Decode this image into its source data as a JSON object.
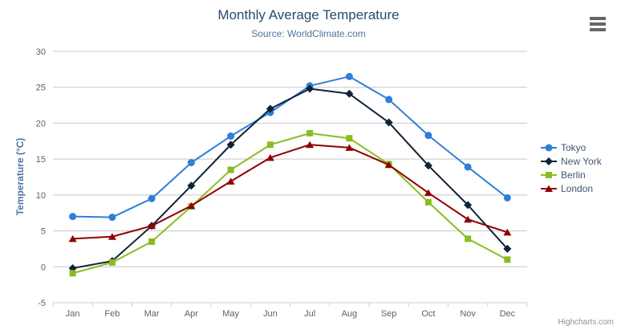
{
  "header": {
    "title": "Monthly Average Temperature",
    "subtitle": "Source: WorldClimate.com"
  },
  "credits": {
    "label": "Highcharts.com"
  },
  "chart_data": {
    "type": "line",
    "title": "Monthly Average Temperature",
    "subtitle": "Source: WorldClimate.com",
    "xlabel": "",
    "ylabel": "Temperature (°C)",
    "ylim": [
      -5,
      30
    ],
    "yticks": [
      -5,
      0,
      5,
      10,
      15,
      20,
      25,
      30
    ],
    "grid": true,
    "legend_position": "right",
    "categories": [
      "Jan",
      "Feb",
      "Mar",
      "Apr",
      "May",
      "Jun",
      "Jul",
      "Aug",
      "Sep",
      "Oct",
      "Nov",
      "Dec"
    ],
    "series": [
      {
        "name": "Tokyo",
        "color": "#2f7ed8",
        "marker": "circle",
        "values": [
          7.0,
          6.9,
          9.5,
          14.5,
          18.2,
          21.5,
          25.2,
          26.5,
          23.3,
          18.3,
          13.9,
          9.6
        ]
      },
      {
        "name": "New York",
        "color": "#0d233a",
        "marker": "diamond",
        "values": [
          -0.2,
          0.8,
          5.7,
          11.3,
          17.0,
          22.0,
          24.8,
          24.1,
          20.1,
          14.1,
          8.6,
          2.5
        ]
      },
      {
        "name": "Berlin",
        "color": "#8bbc21",
        "marker": "square",
        "values": [
          -0.9,
          0.6,
          3.5,
          8.4,
          13.5,
          17.0,
          18.6,
          17.9,
          14.3,
          9.0,
          3.9,
          1.0
        ]
      },
      {
        "name": "London",
        "color": "#910000",
        "marker": "triangle",
        "values": [
          3.9,
          4.2,
          5.7,
          8.5,
          11.9,
          15.2,
          17.0,
          16.6,
          14.2,
          10.3,
          6.6,
          4.8
        ]
      }
    ],
    "axis_colors": {
      "grid_line": "#c8c8c8",
      "axis_line": "#c0d0e0",
      "tick_label": "#606060"
    }
  }
}
